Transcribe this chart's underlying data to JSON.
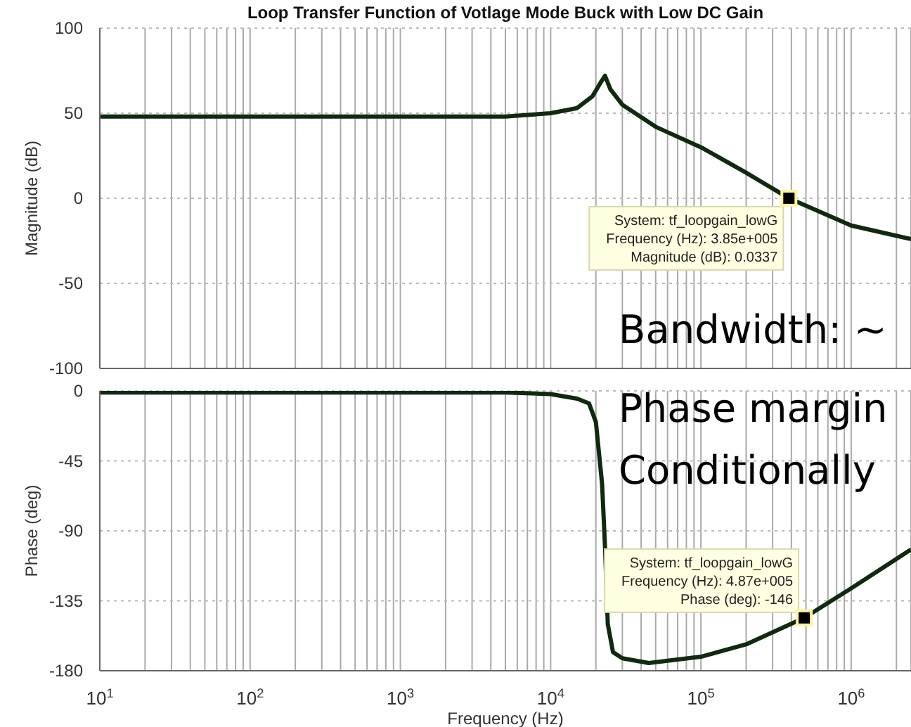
{
  "chart_data": [
    {
      "type": "line",
      "title": "Loop Transfer Function of Votlage Mode Buck with Low DC Gain",
      "ylabel": "Magnitude (dB)",
      "log": "x",
      "grid": true,
      "tick_labels": "y",
      "x": [
        10,
        1000,
        5000,
        10000,
        15000,
        19000,
        21500,
        23000,
        25000,
        30000,
        50000,
        100000,
        200000,
        385000,
        1000000,
        2500000
      ],
      "series": [
        {
          "color": "#0f2a0f",
          "values": [
            48,
            48,
            48,
            50,
            53,
            60,
            68,
            72,
            64,
            55,
            42,
            30,
            15,
            0.0337,
            -16,
            -24
          ]
        }
      ],
      "xlim": [
        10,
        2500000
      ],
      "ylim": [
        -100,
        100
      ],
      "yticks": [
        -100,
        -50,
        0,
        50,
        100
      ],
      "xticks": [
        {
          "value": 10,
          "label": null
        },
        {
          "value": 20,
          "label": null
        },
        {
          "value": 30,
          "label": null
        },
        {
          "value": 40,
          "label": null
        },
        {
          "value": 50,
          "label": null
        },
        {
          "value": 60,
          "label": null
        },
        {
          "value": 70,
          "label": null
        },
        {
          "value": 80,
          "label": null
        },
        {
          "value": 90,
          "label": null
        },
        {
          "value": 100,
          "label": null
        },
        {
          "value": 200,
          "label": null
        },
        {
          "value": 300,
          "label": null
        },
        {
          "value": 400,
          "label": null
        },
        {
          "value": 500,
          "label": null
        },
        {
          "value": 600,
          "label": null
        },
        {
          "value": 700,
          "label": null
        },
        {
          "value": 800,
          "label": null
        },
        {
          "value": 900,
          "label": null
        },
        {
          "value": 1000,
          "label": null
        },
        {
          "value": 2000,
          "label": null
        },
        {
          "value": 3000,
          "label": null
        },
        {
          "value": 4000,
          "label": null
        },
        {
          "value": 5000,
          "label": null
        },
        {
          "value": 6000,
          "label": null
        },
        {
          "value": 7000,
          "label": null
        },
        {
          "value": 8000,
          "label": null
        },
        {
          "value": 9000,
          "label": null
        },
        {
          "value": 10000,
          "label": null
        },
        {
          "value": 20000,
          "label": null
        },
        {
          "value": 30000,
          "label": null
        },
        {
          "value": 40000,
          "label": null
        },
        {
          "value": 50000,
          "label": null
        },
        {
          "value": 60000,
          "label": null
        },
        {
          "value": 70000,
          "label": null
        },
        {
          "value": 80000,
          "label": null
        },
        {
          "value": 90000,
          "label": null
        },
        {
          "value": 100000,
          "label": null
        },
        {
          "value": 200000,
          "label": null
        },
        {
          "value": 300000,
          "label": null
        },
        {
          "value": 400000,
          "label": null
        },
        {
          "value": 500000,
          "label": null
        },
        {
          "value": 600000,
          "label": null
        },
        {
          "value": 700000,
          "label": null
        },
        {
          "value": 800000,
          "label": null
        },
        {
          "value": 900000,
          "label": null
        },
        {
          "value": 1000000,
          "label": null
        },
        {
          "value": 2000000,
          "label": null
        }
      ],
      "annotations": [
        {
          "text": "System: tf_loopgain_lowG\nFrequency (Hz): 3.85e+005\nMagnitude (dB): 0.0337",
          "x": 385000,
          "y": 0.0337
        },
        "Bandwidth: ~"
      ]
    },
    {
      "type": "line",
      "ylabel": "Phase (deg)",
      "xlabel": "Frequency  (Hz)",
      "log": "x",
      "grid": true,
      "x": [
        10,
        1000,
        5000,
        10000,
        15000,
        18000,
        20000,
        22000,
        23000,
        24000,
        26000,
        30000,
        45000,
        100000,
        200000,
        487000,
        1000000,
        2500000
      ],
      "series": [
        {
          "color": "#0f2a0f",
          "values": [
            -1,
            -1,
            -1,
            -2,
            -5,
            -8,
            -20,
            -60,
            -100,
            -150,
            -168,
            -172,
            -175,
            -171,
            -163,
            -146,
            -127,
            -102
          ]
        }
      ],
      "xlim": [
        10,
        2500000
      ],
      "ylim": [
        -180,
        0
      ],
      "yticks": [
        -180,
        -135,
        -90,
        -45,
        0
      ],
      "xticks": [
        {
          "value": 10,
          "label": "10$^{1}$"
        },
        {
          "value": 20,
          "label": null
        },
        {
          "value": 30,
          "label": null
        },
        {
          "value": 40,
          "label": null
        },
        {
          "value": 50,
          "label": null
        },
        {
          "value": 60,
          "label": null
        },
        {
          "value": 70,
          "label": null
        },
        {
          "value": 80,
          "label": null
        },
        {
          "value": 90,
          "label": null
        },
        {
          "value": 100,
          "label": "10$^{2}$"
        },
        {
          "value": 200,
          "label": null
        },
        {
          "value": 300,
          "label": null
        },
        {
          "value": 400,
          "label": null
        },
        {
          "value": 500,
          "label": null
        },
        {
          "value": 600,
          "label": null
        },
        {
          "value": 700,
          "label": null
        },
        {
          "value": 800,
          "label": null
        },
        {
          "value": 900,
          "label": null
        },
        {
          "value": 1000,
          "label": "10$^{3}$"
        },
        {
          "value": 2000,
          "label": null
        },
        {
          "value": 3000,
          "label": null
        },
        {
          "value": 4000,
          "label": null
        },
        {
          "value": 5000,
          "label": null
        },
        {
          "value": 6000,
          "label": null
        },
        {
          "value": 7000,
          "label": null
        },
        {
          "value": 8000,
          "label": null
        },
        {
          "value": 9000,
          "label": null
        },
        {
          "value": 10000,
          "label": "10$^{4}$"
        },
        {
          "value": 20000,
          "label": null
        },
        {
          "value": 30000,
          "label": null
        },
        {
          "value": 40000,
          "label": null
        },
        {
          "value": 50000,
          "label": null
        },
        {
          "value": 60000,
          "label": null
        },
        {
          "value": 70000,
          "label": null
        },
        {
          "value": 80000,
          "label": null
        },
        {
          "value": 90000,
          "label": null
        },
        {
          "value": 100000,
          "label": "10$^{5}$"
        },
        {
          "value": 200000,
          "label": null
        },
        {
          "value": 300000,
          "label": null
        },
        {
          "value": 400000,
          "label": null
        },
        {
          "value": 500000,
          "label": null
        },
        {
          "value": 600000,
          "label": null
        },
        {
          "value": 700000,
          "label": null
        },
        {
          "value": 800000,
          "label": null
        },
        {
          "value": 900000,
          "label": null
        },
        {
          "value": 1000000,
          "label": "10$^{6}$"
        },
        {
          "value": 2000000,
          "label": null
        }
      ],
      "annotations": [
        {
          "text": "System: tf_loopgain_lowG\nFrequency (Hz): 4.87e+005\nPhase (deg): -146",
          "x": 487000,
          "y": -146
        },
        "Phase margin",
        "Conditionally"
      ]
    }
  ]
}
